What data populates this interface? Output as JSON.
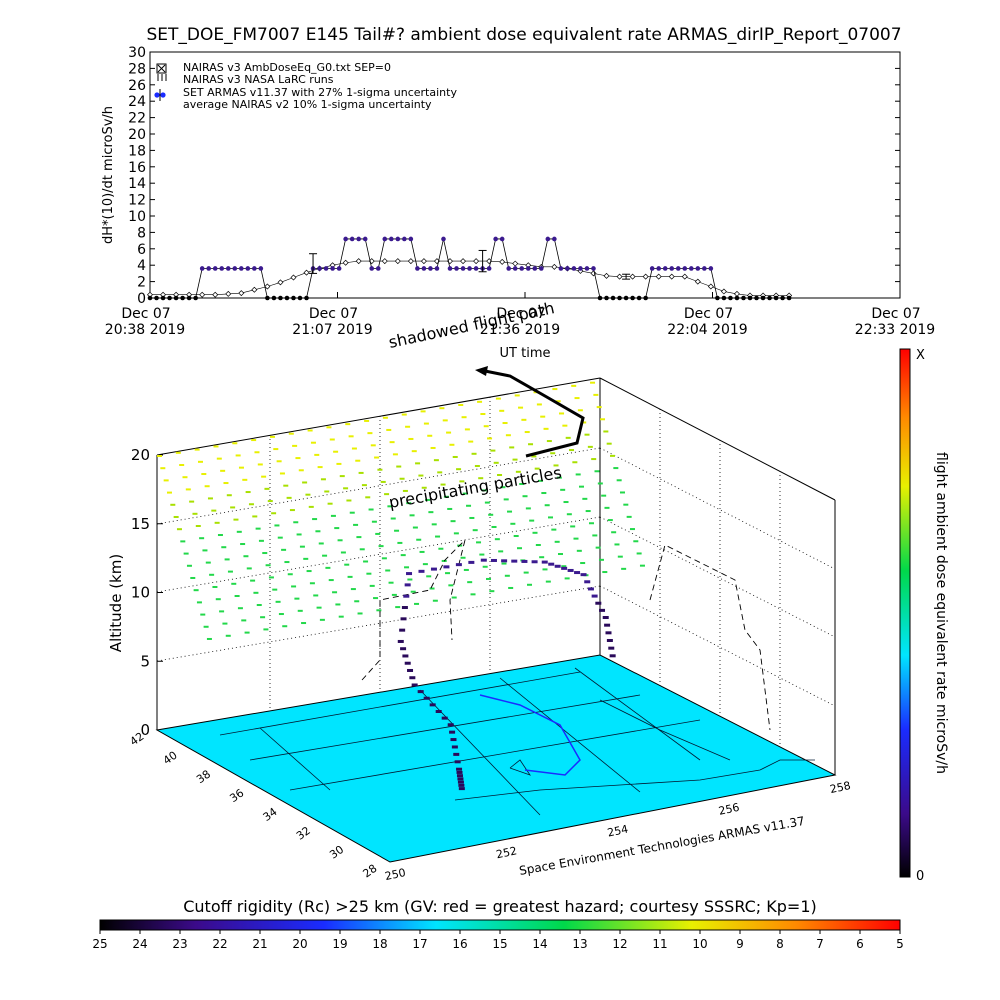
{
  "title": "SET_DOE_FM7007  E145 Tail#? ambient dose equivalent rate ARMAS_dirIP_Report_07007",
  "top_chart": {
    "ylabel": "dH*(10)/dt microSv/h",
    "xlabel": "UT time",
    "ylim": [
      0,
      30
    ],
    "yticks": [
      "0",
      "2",
      "4",
      "6",
      "8",
      "10",
      "12",
      "14",
      "16",
      "18",
      "20",
      "22",
      "24",
      "26",
      "28",
      "30"
    ],
    "xticks": [
      {
        "line1": "Dec 07",
        "line2": "20:38 2019"
      },
      {
        "line1": "Dec 07",
        "line2": "21:07 2019"
      },
      {
        "line1": "Dec 07",
        "line2": "21:36 2019"
      },
      {
        "line1": "Dec 07",
        "line2": "22:04 2019"
      },
      {
        "line1": "Dec 07",
        "line2": "22:33 2019"
      }
    ],
    "legend": [
      "NAIRAS v3 AmbDoseEq_G0.txt SEP=0",
      "NAIRAS v3 NASA LaRC runs",
      "SET ARMAS v11.37 with 27% 1-sigma uncertainty",
      "average NAIRAS v2 10% 1-sigma uncertainty"
    ]
  },
  "chart_data": [
    {
      "type": "line",
      "title": "SET_DOE_FM7007  E145 Tail#? ambient dose equivalent rate ARMAS_dirIP_Report_07007",
      "xlabel": "UT time",
      "ylabel": "dH*(10)/dt microSv/h",
      "x_unit": "minutes after 20:38",
      "xlim": [
        0,
        115
      ],
      "ylim": [
        0,
        30
      ],
      "series": [
        {
          "name": "SET ARMAS v11.37 with 27% 1-sigma uncertainty",
          "color": "#3b1a8f",
          "points": [
            [
              0,
              0
            ],
            [
              1,
              0
            ],
            [
              2,
              0
            ],
            [
              3,
              0
            ],
            [
              4,
              0
            ],
            [
              5,
              0
            ],
            [
              6,
              0
            ],
            [
              7,
              0
            ],
            [
              8,
              3.6
            ],
            [
              9,
              3.6
            ],
            [
              10,
              3.6
            ],
            [
              11,
              3.6
            ],
            [
              12,
              3.6
            ],
            [
              13,
              3.6
            ],
            [
              14,
              3.6
            ],
            [
              15,
              3.6
            ],
            [
              16,
              3.6
            ],
            [
              17,
              3.6
            ],
            [
              18,
              0
            ],
            [
              19,
              0
            ],
            [
              20,
              0
            ],
            [
              21,
              0
            ],
            [
              22,
              0
            ],
            [
              23,
              0
            ],
            [
              24,
              0
            ],
            [
              25,
              3.6
            ],
            [
              26,
              3.6
            ],
            [
              27,
              3.6
            ],
            [
              28,
              3.6
            ],
            [
              29,
              3.6
            ],
            [
              30,
              7.2
            ],
            [
              31,
              7.2
            ],
            [
              32,
              7.2
            ],
            [
              33,
              7.2
            ],
            [
              34,
              3.6
            ],
            [
              35,
              3.6
            ],
            [
              36,
              7.2
            ],
            [
              37,
              7.2
            ],
            [
              38,
              7.2
            ],
            [
              39,
              7.2
            ],
            [
              40,
              7.2
            ],
            [
              41,
              3.6
            ],
            [
              42,
              3.6
            ],
            [
              43,
              3.6
            ],
            [
              44,
              3.6
            ],
            [
              45,
              7.2
            ],
            [
              46,
              3.6
            ],
            [
              47,
              3.6
            ],
            [
              48,
              3.6
            ],
            [
              49,
              3.6
            ],
            [
              50,
              3.6
            ],
            [
              51,
              3.6
            ],
            [
              52,
              3.6
            ],
            [
              53,
              7.2
            ],
            [
              54,
              7.2
            ],
            [
              55,
              3.6
            ],
            [
              56,
              3.6
            ],
            [
              57,
              3.6
            ],
            [
              58,
              3.6
            ],
            [
              59,
              3.6
            ],
            [
              60,
              3.6
            ],
            [
              61,
              7.2
            ],
            [
              62,
              7.2
            ],
            [
              63,
              3.6
            ],
            [
              64,
              3.6
            ],
            [
              65,
              3.6
            ],
            [
              66,
              3.6
            ],
            [
              67,
              3.6
            ],
            [
              68,
              3.6
            ],
            [
              69,
              0
            ],
            [
              70,
              0
            ],
            [
              71,
              0
            ],
            [
              72,
              0
            ],
            [
              73,
              0
            ],
            [
              74,
              0
            ],
            [
              75,
              0
            ],
            [
              76,
              0
            ],
            [
              77,
              3.6
            ],
            [
              78,
              3.6
            ],
            [
              79,
              3.6
            ],
            [
              80,
              3.6
            ],
            [
              81,
              3.6
            ],
            [
              82,
              3.6
            ],
            [
              83,
              3.6
            ],
            [
              84,
              3.6
            ],
            [
              85,
              3.6
            ],
            [
              86,
              3.6
            ],
            [
              87,
              0
            ],
            [
              88,
              0
            ],
            [
              89,
              0
            ],
            [
              90,
              0
            ],
            [
              91,
              0
            ],
            [
              92,
              0
            ],
            [
              93,
              0
            ],
            [
              94,
              0
            ],
            [
              95,
              0
            ],
            [
              96,
              0
            ],
            [
              97,
              0
            ],
            [
              98,
              0
            ]
          ]
        },
        {
          "name": "NAIRAS v3 AmbDoseEq_G0.txt SEP=0",
          "color": "#000000",
          "points": [
            [
              0,
              0.4
            ],
            [
              2,
              0.4
            ],
            [
              4,
              0.4
            ],
            [
              6,
              0.4
            ],
            [
              8,
              0.4
            ],
            [
              10,
              0.4
            ],
            [
              12,
              0.5
            ],
            [
              14,
              0.6
            ],
            [
              16,
              1.0
            ],
            [
              18,
              1.4
            ],
            [
              20,
              1.9
            ],
            [
              22,
              2.5
            ],
            [
              24,
              3.1
            ],
            [
              26,
              3.6
            ],
            [
              28,
              4.0
            ],
            [
              30,
              4.3
            ],
            [
              32,
              4.5
            ],
            [
              34,
              4.5
            ],
            [
              36,
              4.5
            ],
            [
              38,
              4.5
            ],
            [
              40,
              4.5
            ],
            [
              42,
              4.5
            ],
            [
              44,
              4.5
            ],
            [
              46,
              4.5
            ],
            [
              48,
              4.5
            ],
            [
              50,
              4.5
            ],
            [
              52,
              4.5
            ],
            [
              54,
              4.4
            ],
            [
              56,
              4.2
            ],
            [
              58,
              4.0
            ],
            [
              60,
              3.8
            ],
            [
              62,
              3.8
            ],
            [
              64,
              3.6
            ],
            [
              66,
              3.3
            ],
            [
              68,
              3.0
            ],
            [
              70,
              2.7
            ],
            [
              72,
              2.6
            ],
            [
              74,
              2.6
            ],
            [
              76,
              2.6
            ],
            [
              78,
              2.6
            ],
            [
              80,
              2.6
            ],
            [
              82,
              2.6
            ],
            [
              84,
              2.0
            ],
            [
              86,
              1.4
            ],
            [
              88,
              0.8
            ],
            [
              90,
              0.5
            ],
            [
              92,
              0.3
            ],
            [
              94,
              0.3
            ],
            [
              96,
              0.3
            ],
            [
              98,
              0.3
            ]
          ]
        }
      ],
      "error_bars": [
        {
          "x": 25,
          "y": 4.2,
          "err": 1.2
        },
        {
          "x": 51,
          "y": 4.5,
          "err": 1.3
        },
        {
          "x": 73,
          "y": 2.6,
          "err": 0.3
        }
      ]
    },
    {
      "type": "scatter",
      "title": "",
      "zlabel": "Altitude (km)",
      "z_ticks": [
        "0",
        "5",
        "10",
        "15",
        "20"
      ],
      "lat_ticks": [
        "28",
        "30",
        "32",
        "34",
        "36",
        "38",
        "40",
        "42"
      ],
      "lon_ticks": [
        "250",
        "252",
        "254",
        "256",
        "258"
      ],
      "colorbar": {
        "label": "flight ambient dose equivalent rate microSv/h",
        "top": "X",
        "bottom": "0"
      },
      "flight_track": [
        {
          "lon": 252.8,
          "lat": 33.0,
          "alt": 0
        },
        {
          "lon": 252.9,
          "lat": 33.5,
          "alt": 1
        },
        {
          "lon": 253.2,
          "lat": 35.0,
          "alt": 3
        },
        {
          "lon": 253.0,
          "lat": 36.5,
          "alt": 5
        },
        {
          "lon": 253.2,
          "lat": 38.0,
          "alt": 7
        },
        {
          "lon": 253.8,
          "lat": 39.5,
          "alt": 10.5
        },
        {
          "lon": 255.0,
          "lat": 39.0,
          "alt": 11
        },
        {
          "lon": 255.8,
          "lat": 38.0,
          "alt": 11
        },
        {
          "lon": 256.2,
          "lat": 37.0,
          "alt": 10.5
        },
        {
          "lon": 256.3,
          "lat": 36.0,
          "alt": 8
        },
        {
          "lon": 256.3,
          "lat": 35.5,
          "alt": 5
        }
      ],
      "annotations": [
        "shadowed flight path",
        "precipitating particles"
      ],
      "footer": "Space Environment Technologies ARMAS v11.37"
    }
  ],
  "colorbar_bottom": {
    "label": "Cutoff rigidity (Rc) >25 km (GV: red = greatest hazard; courtesy SSSRC; Kp=1)",
    "ticks": [
      "25",
      "24",
      "23",
      "22",
      "21",
      "20",
      "19",
      "18",
      "17",
      "16",
      "15",
      "14",
      "13",
      "12",
      "11",
      "10",
      "9",
      "8",
      "7",
      "6",
      "5"
    ]
  },
  "colors": {
    "surface": "#00e5ff",
    "armas": "#3b1a8f",
    "nairas": "#000000"
  }
}
